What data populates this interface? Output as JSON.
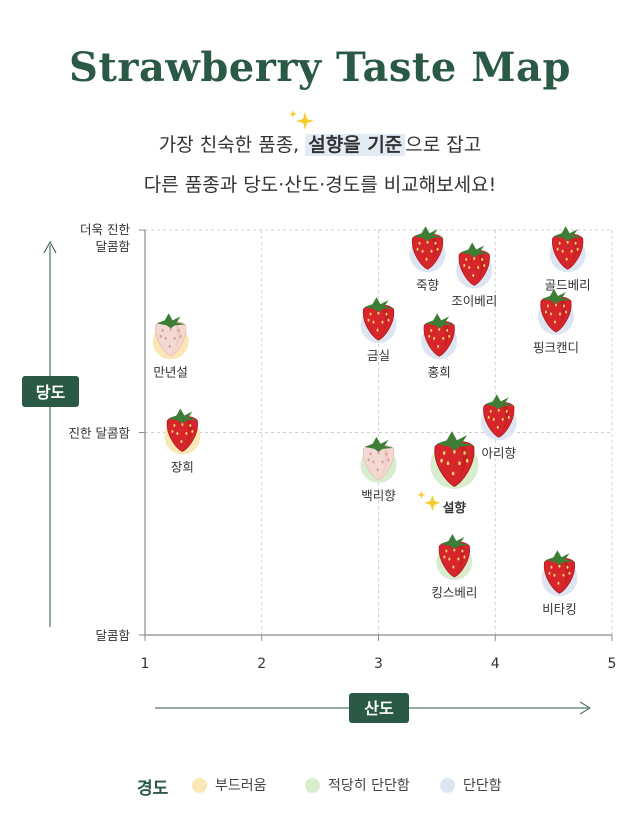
{
  "header": {
    "title": "Strawberry Taste Map",
    "line1_a": "가장 친숙한 품종, ",
    "line1_hl": "설향을 기준",
    "line1_b": "으로 잡고",
    "line2": "다른 품종과 당도·산도·경도를 비교해보세요!"
  },
  "chart_data": {
    "type": "scatter",
    "title": "Strawberry Taste Map",
    "xlabel": "산도",
    "ylabel": "당도",
    "xlim": [
      1,
      5
    ],
    "x_ticks": [
      "1",
      "2",
      "3",
      "4",
      "5"
    ],
    "y_tick_labels": [
      "달콤함",
      "진한 달콤함",
      "더욱 진한 달콤함"
    ],
    "y_ticks_top_lines": [
      "더욱 진한",
      "달콤함"
    ],
    "ylim": [
      1,
      3
    ],
    "grid": true,
    "reference": {
      "x": 4,
      "y": 2
    },
    "colors": {
      "부드러움": "#fbe6b5",
      "적당히 단단함": "#d8ecce",
      "단단함": "#dde5f3"
    },
    "points": [
      {
        "name": "죽향",
        "x": 3.42,
        "y": 2.9,
        "firmness": "단단함"
      },
      {
        "name": "조이베리",
        "x": 3.82,
        "y": 2.82,
        "firmness": "단단함"
      },
      {
        "name": "골드베리",
        "x": 4.62,
        "y": 2.9,
        "firmness": "단단함"
      },
      {
        "name": "금실",
        "x": 3.0,
        "y": 2.55,
        "firmness": "단단함"
      },
      {
        "name": "홍희",
        "x": 3.52,
        "y": 2.47,
        "firmness": "단단함"
      },
      {
        "name": "핑크캔디",
        "x": 4.52,
        "y": 2.59,
        "firmness": "단단함"
      },
      {
        "name": "만년설",
        "x": 1.22,
        "y": 2.47,
        "firmness": "부드러움"
      },
      {
        "name": "장희",
        "x": 1.32,
        "y": 2.0,
        "firmness": "부드러움"
      },
      {
        "name": "아리향",
        "x": 4.03,
        "y": 2.07,
        "firmness": "단단함"
      },
      {
        "name": "백리향",
        "x": 3.0,
        "y": 1.86,
        "firmness": "적당히 단단함"
      },
      {
        "name": "설향",
        "x": 3.65,
        "y": 1.86,
        "firmness": "적당히 단단함",
        "highlight": true
      },
      {
        "name": "킹스베리",
        "x": 3.65,
        "y": 1.38,
        "firmness": "적당히 단단함"
      },
      {
        "name": "비타킹",
        "x": 4.55,
        "y": 1.3,
        "firmness": "단단함"
      }
    ]
  },
  "legend": {
    "title": "경도",
    "items": [
      {
        "label": "부드러움",
        "color": "#fbe6b5"
      },
      {
        "label": "적당히 단단함",
        "color": "#d8ecce"
      },
      {
        "label": "단단함",
        "color": "#dde5f3"
      }
    ]
  }
}
